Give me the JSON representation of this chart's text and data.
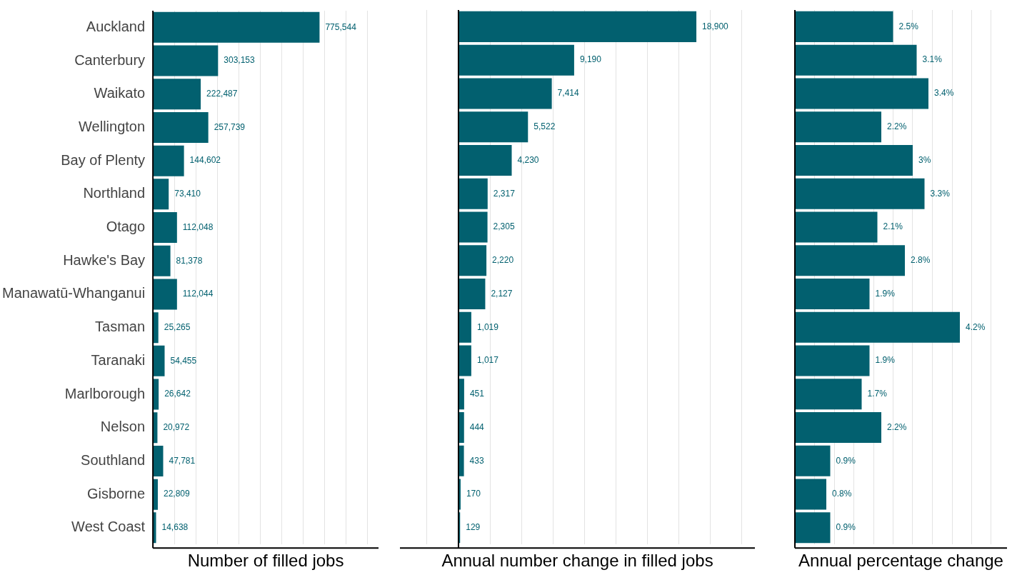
{
  "chart_data": [
    {
      "type": "bar",
      "orientation": "horizontal",
      "xlabel": "Number of filled jobs",
      "categories": [
        "Auckland",
        "Canterbury",
        "Waikato",
        "Wellington",
        "Bay of Plenty",
        "Northland",
        "Otago",
        "Hawke's Bay",
        "Manawatū-Whanganui",
        "Tasman",
        "Taranaki",
        "Marlborough",
        "Nelson",
        "Southland",
        "Gisborne",
        "West Coast"
      ],
      "values": [
        775544,
        303153,
        222487,
        257739,
        144602,
        73410,
        112048,
        81378,
        112044,
        25265,
        54455,
        26642,
        20972,
        47781,
        22809,
        14638
      ],
      "value_labels": [
        "775,544",
        "303,153",
        "222,487",
        "257,739",
        "144,602",
        "73,410",
        "112,048",
        "81,378",
        "112,044",
        "25,265",
        "54,455",
        "26,642",
        "20,972",
        "47,781",
        "22,809",
        "14,638"
      ],
      "color": "#02606f",
      "xlim": [
        0,
        1050000
      ],
      "xticks": [
        {
          "value": 0,
          "label": null
        },
        {
          "value": 100000,
          "label": null
        },
        {
          "value": 200000,
          "label": null
        },
        {
          "value": 300000,
          "label": null
        },
        {
          "value": 400000,
          "label": null
        },
        {
          "value": 500000,
          "label": null
        },
        {
          "value": 600000,
          "label": null
        },
        {
          "value": 700000,
          "label": null
        },
        {
          "value": 800000,
          "label": null
        },
        {
          "value": 900000,
          "label": null
        },
        {
          "value": 1000000,
          "label": null
        }
      ],
      "grid": "x",
      "tick_labels": "y",
      "legend": false
    },
    {
      "type": "bar",
      "orientation": "horizontal",
      "xlabel": "Annual number change in filled jobs",
      "categories": [
        null,
        null,
        null,
        null,
        null,
        null,
        null,
        null,
        null,
        null,
        null,
        null,
        null,
        null,
        null,
        null
      ],
      "values": [
        18900,
        9190,
        7414,
        5522,
        4230,
        2317,
        2305,
        2220,
        2127,
        1019,
        1017,
        451,
        444,
        433,
        170,
        129
      ],
      "value_labels": [
        "18,900",
        "9,190",
        "7,414",
        "5,522",
        "4,230",
        "2,317",
        "2,305",
        "2,220",
        "2,127",
        "1,019",
        "1,017",
        "451",
        "444",
        "433",
        "170",
        "129"
      ],
      "color": "#02606f",
      "xlim": [
        -4650,
        23550
      ],
      "xticks": [
        {
          "value": -2500,
          "label": null
        },
        {
          "value": 0,
          "label": null
        },
        {
          "value": 2500,
          "label": null
        },
        {
          "value": 5000,
          "label": null
        },
        {
          "value": 7500,
          "label": null
        },
        {
          "value": 10000,
          "label": null
        },
        {
          "value": 12500,
          "label": null
        },
        {
          "value": 15000,
          "label": null
        },
        {
          "value": 17500,
          "label": null
        },
        {
          "value": 20000,
          "label": null
        },
        {
          "value": 22500,
          "label": null
        }
      ],
      "grid": "x",
      "tick_labels": false,
      "legend": false
    },
    {
      "type": "bar",
      "orientation": "horizontal",
      "xlabel": "Annual percentage change",
      "categories": [
        null,
        null,
        null,
        null,
        null,
        null,
        null,
        null,
        null,
        null,
        null,
        null,
        null,
        null,
        null,
        null
      ],
      "values": [
        2.5,
        3.1,
        3.4,
        2.2,
        3,
        3.3,
        2.1,
        2.8,
        1.9,
        4.2,
        1.9,
        1.7,
        2.2,
        0.9,
        0.8,
        0.9
      ],
      "value_labels": [
        "2.5%",
        "3.1%",
        "3.4%",
        "2.2%",
        "3%",
        "3.3%",
        "2.1%",
        "2.8%",
        "1.9%",
        "4.2%",
        "1.9%",
        "1.7%",
        "2.2%",
        "0.9%",
        "0.8%",
        "0.9%"
      ],
      "color": "#02606f",
      "xlim": [
        0,
        5.4
      ],
      "xticks": [
        {
          "value": 0,
          "label": null
        },
        {
          "value": 0.5,
          "label": null
        },
        {
          "value": 1,
          "label": null
        },
        {
          "value": 1.5,
          "label": null
        },
        {
          "value": 2,
          "label": null
        },
        {
          "value": 2.5,
          "label": null
        },
        {
          "value": 3,
          "label": null
        },
        {
          "value": 3.5,
          "label": null
        },
        {
          "value": 4,
          "label": null
        },
        {
          "value": 4.5,
          "label": null
        },
        {
          "value": 5,
          "label": null
        }
      ],
      "grid": "x",
      "tick_labels": false,
      "legend": false
    }
  ]
}
